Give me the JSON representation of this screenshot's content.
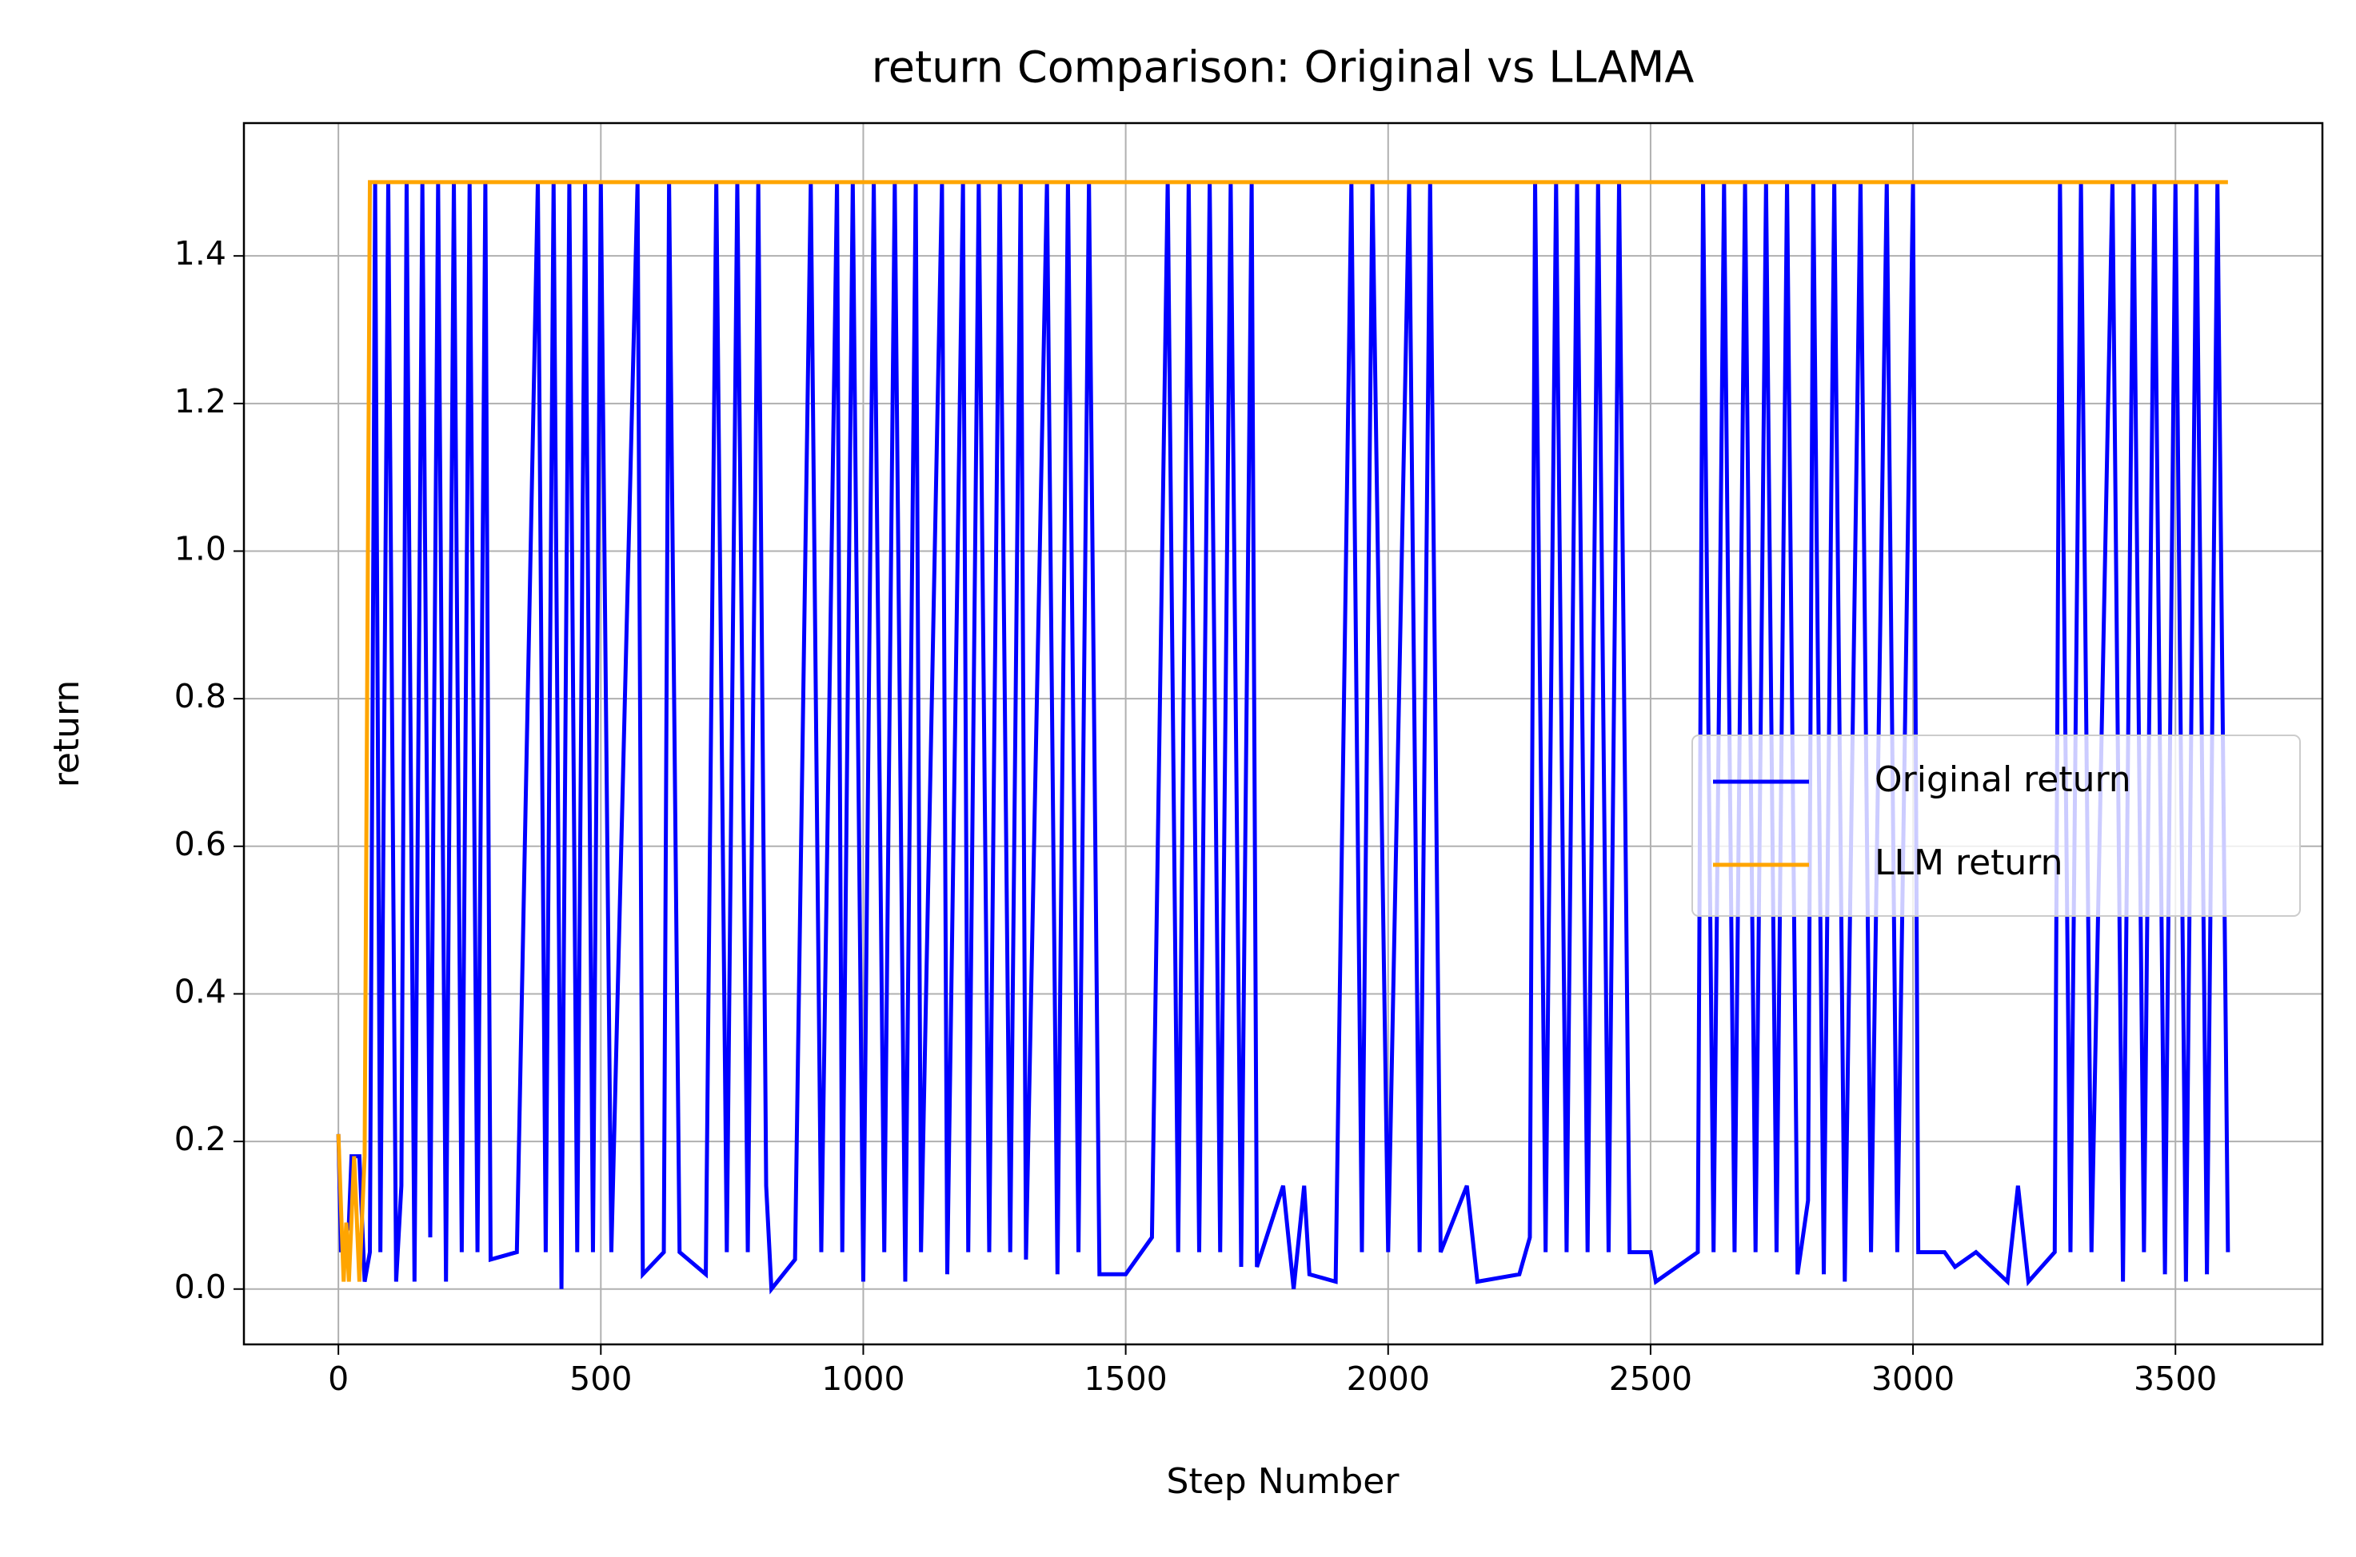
{
  "chart_data": {
    "type": "line",
    "title": "return Comparison: Original vs LLAMA",
    "x_label": "Step Number",
    "y_label": "return",
    "xlim": [
      -180,
      3780
    ],
    "ylim": [
      -0.075,
      1.58
    ],
    "xticks": [
      0,
      500,
      1000,
      1500,
      2000,
      2500,
      3000,
      3500
    ],
    "yticks": [
      {
        "value": 0,
        "label": "0.0"
      },
      0.2,
      0.4,
      0.6,
      0.8,
      {
        "value": 1,
        "label": "1.0"
      },
      1.2,
      1.4
    ],
    "grid": true,
    "legend": "center right",
    "series": [
      {
        "name": "Original return",
        "color": "#0000ff",
        "x": [
          0,
          5,
          20,
          25,
          40,
          50,
          60,
          70,
          80,
          95,
          110,
          120,
          130,
          145,
          160,
          175,
          190,
          205,
          220,
          235,
          250,
          265,
          280,
          290,
          340,
          380,
          395,
          410,
          425,
          440,
          455,
          470,
          485,
          500,
          520,
          570,
          580,
          620,
          630,
          650,
          700,
          720,
          740,
          760,
          780,
          800,
          815,
          825,
          870,
          900,
          920,
          950,
          960,
          980,
          1000,
          1020,
          1040,
          1060,
          1080,
          1100,
          1110,
          1150,
          1160,
          1190,
          1200,
          1220,
          1240,
          1260,
          1280,
          1300,
          1310,
          1350,
          1370,
          1390,
          1410,
          1430,
          1450,
          1500,
          1550,
          1580,
          1600,
          1620,
          1640,
          1660,
          1680,
          1700,
          1720,
          1740,
          1750,
          1800,
          1820,
          1840,
          1850,
          1900,
          1930,
          1950,
          1970,
          2000,
          2040,
          2060,
          2080,
          2100,
          2150,
          2170,
          2250,
          2270,
          2280,
          2300,
          2320,
          2340,
          2360,
          2380,
          2400,
          2420,
          2440,
          2460,
          2500,
          2510,
          2590,
          2600,
          2620,
          2640,
          2660,
          2680,
          2700,
          2720,
          2740,
          2760,
          2780,
          2800,
          2810,
          2830,
          2850,
          2870,
          2900,
          2920,
          2950,
          2970,
          3000,
          3010,
          3060,
          3080,
          3120,
          3180,
          3200,
          3220,
          3270,
          3280,
          3300,
          3320,
          3340,
          3380,
          3400,
          3420,
          3440,
          3460,
          3480,
          3500,
          3520,
          3540,
          3560,
          3580,
          3600
        ],
        "values": [
          0.21,
          0.05,
          0.09,
          0.18,
          0.18,
          0.01,
          0.05,
          1.5,
          0.05,
          1.5,
          0.01,
          0.14,
          1.5,
          0.01,
          1.5,
          0.07,
          1.5,
          0.01,
          1.5,
          0.05,
          1.5,
          0.05,
          1.5,
          0.04,
          0.05,
          1.5,
          0.05,
          1.5,
          0.0,
          1.5,
          0.05,
          1.5,
          0.05,
          1.5,
          0.05,
          1.5,
          0.02,
          0.05,
          1.5,
          0.05,
          0.02,
          1.5,
          0.05,
          1.5,
          0.05,
          1.5,
          0.14,
          0.0,
          0.04,
          1.5,
          0.05,
          1.5,
          0.05,
          1.5,
          0.01,
          1.5,
          0.05,
          1.5,
          0.01,
          1.5,
          0.05,
          1.5,
          0.02,
          1.5,
          0.05,
          1.5,
          0.05,
          1.5,
          0.05,
          1.5,
          0.04,
          1.5,
          0.02,
          1.5,
          0.05,
          1.5,
          0.02,
          0.02,
          0.07,
          1.5,
          0.05,
          1.5,
          0.05,
          1.5,
          0.05,
          1.5,
          0.03,
          1.5,
          0.03,
          0.14,
          0.0,
          0.14,
          0.02,
          0.01,
          1.5,
          0.05,
          1.5,
          0.05,
          1.5,
          0.05,
          1.5,
          0.05,
          0.14,
          0.01,
          0.02,
          0.07,
          1.5,
          0.05,
          1.5,
          0.05,
          1.5,
          0.05,
          1.5,
          0.05,
          1.5,
          0.05,
          0.05,
          0.01,
          0.05,
          1.5,
          0.05,
          1.5,
          0.05,
          1.5,
          0.05,
          1.5,
          0.05,
          1.5,
          0.02,
          0.12,
          1.5,
          0.02,
          1.5,
          0.01,
          1.5,
          0.05,
          1.5,
          0.05,
          1.5,
          0.05,
          0.05,
          0.03,
          0.05,
          0.01,
          0.14,
          0.01,
          0.05,
          1.5,
          0.05,
          1.5,
          0.05,
          1.5,
          0.01,
          1.5,
          0.05,
          1.5,
          0.02,
          1.5,
          0.01,
          1.5,
          0.02,
          1.5,
          0.05
        ]
      },
      {
        "name": "LLM return",
        "color": "#ffa500",
        "x": [
          0,
          10,
          15,
          20,
          30,
          40,
          50,
          60,
          3600
        ],
        "values": [
          0.21,
          0.01,
          0.09,
          0.01,
          0.18,
          0.01,
          0.18,
          1.5,
          1.5
        ]
      }
    ]
  }
}
